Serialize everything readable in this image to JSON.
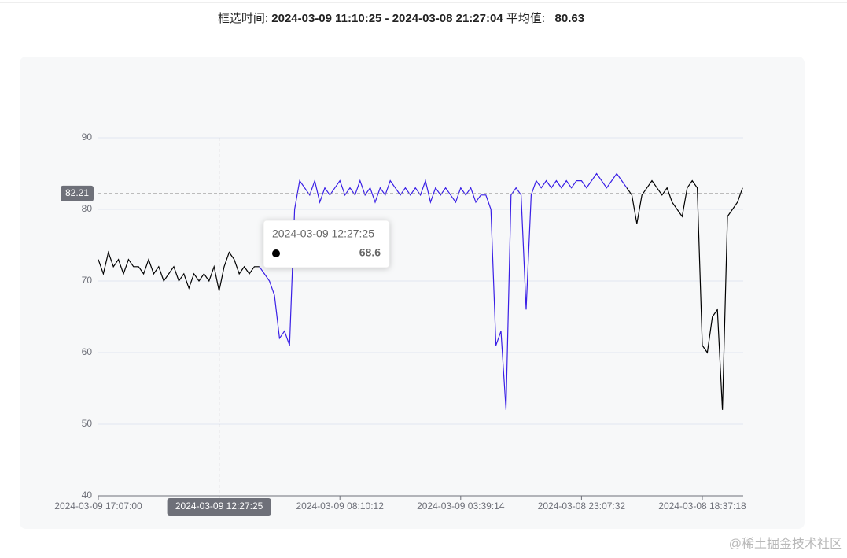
{
  "header": {
    "range_label": "框选时间:",
    "range": "2024-03-09 11:10:25 - 2024-03-08 21:27:04",
    "avg_label": "平均值:",
    "avg": "80.63"
  },
  "chart_data": {
    "type": "line",
    "categories": [
      "2024-03-09 17:07:00",
      null,
      null,
      null,
      null,
      null,
      null,
      null,
      null,
      null,
      null,
      null,
      null,
      null,
      null,
      null,
      null,
      null,
      null,
      null,
      null,
      null,
      null,
      null,
      "2024-03-09 12:27:25",
      null,
      null,
      null,
      null,
      null,
      null,
      null,
      null,
      null,
      null,
      null,
      null,
      null,
      null,
      null,
      null,
      null,
      null,
      null,
      null,
      null,
      null,
      null,
      "2024-03-09 08:10:12",
      null,
      null,
      null,
      null,
      null,
      null,
      null,
      null,
      null,
      null,
      null,
      null,
      null,
      null,
      null,
      null,
      null,
      null,
      null,
      null,
      null,
      null,
      null,
      "2024-03-09 03:39:14",
      null,
      null,
      null,
      null,
      null,
      null,
      null,
      null,
      null,
      null,
      null,
      null,
      null,
      null,
      null,
      null,
      null,
      null,
      null,
      null,
      null,
      null,
      null,
      "2024-03-08 23:07:32",
      null,
      null,
      null,
      null,
      null,
      null,
      null,
      null,
      null,
      null,
      null,
      null,
      null,
      null,
      null,
      null,
      null,
      null,
      null,
      null,
      null,
      null,
      null,
      "2024-03-08 18:37:18",
      null,
      null,
      null,
      null,
      null,
      null,
      null,
      null
    ],
    "series": [
      {
        "color": "#000000",
        "values": [
          73,
          71,
          74,
          72,
          73,
          71,
          73,
          72,
          72,
          71,
          73,
          71,
          72,
          70,
          71,
          72,
          70,
          71,
          69,
          71,
          70,
          71,
          70,
          72,
          68.6,
          72,
          74,
          73,
          71,
          72,
          71,
          72,
          72,
          null,
          null,
          null,
          null,
          null,
          null,
          null,
          null,
          null,
          null,
          null,
          null,
          null,
          null,
          null,
          null,
          null,
          null,
          null,
          null,
          null,
          null,
          null,
          null,
          null,
          null,
          null,
          null,
          null,
          null,
          null,
          null,
          null,
          null,
          null,
          null,
          null,
          null,
          null,
          null,
          null,
          null,
          null,
          null,
          null,
          null,
          null,
          null,
          null,
          null,
          null,
          null,
          null,
          null,
          null,
          null,
          null,
          null,
          null,
          null,
          null,
          null,
          null,
          null,
          null,
          null,
          null,
          null,
          null,
          null,
          null,
          null,
          83,
          82,
          78,
          82,
          83,
          84,
          83,
          82,
          83,
          81,
          80,
          79,
          83,
          84,
          83,
          61,
          60,
          65,
          66,
          52,
          79,
          80,
          81,
          83
        ]
      },
      {
        "color": "#3a1fe6",
        "values": [
          null,
          null,
          null,
          null,
          null,
          null,
          null,
          null,
          null,
          null,
          null,
          null,
          null,
          null,
          null,
          null,
          null,
          null,
          null,
          null,
          null,
          null,
          null,
          null,
          null,
          null,
          null,
          null,
          null,
          null,
          null,
          null,
          72,
          71,
          70,
          68,
          62,
          63,
          61,
          80,
          84,
          83,
          82,
          84,
          81,
          83,
          82,
          83,
          84,
          82,
          83,
          82,
          84,
          82,
          83,
          81,
          83,
          82,
          84,
          83,
          82,
          83,
          82,
          83,
          82,
          84,
          81,
          83,
          82,
          83,
          82,
          81,
          83,
          82,
          83,
          81,
          82,
          82,
          80,
          61,
          63,
          52,
          82,
          83,
          82,
          66,
          82,
          84,
          83,
          84,
          83,
          84,
          83,
          84,
          83,
          84,
          84,
          83,
          84,
          85,
          84,
          83,
          84,
          85,
          84,
          83,
          null,
          null,
          null,
          null,
          null,
          null,
          null,
          null,
          null,
          null,
          null,
          null,
          null,
          null,
          null,
          null,
          null,
          null,
          null,
          null,
          null,
          null,
          null
        ]
      }
    ],
    "ylim": [
      40,
      90
    ],
    "yticks": [
      40,
      50,
      60,
      70,
      80,
      90
    ],
    "grid": true,
    "pointer_index": 24,
    "pointer_y": 82.21
  },
  "watermark": "@稀土掘金技术社区"
}
